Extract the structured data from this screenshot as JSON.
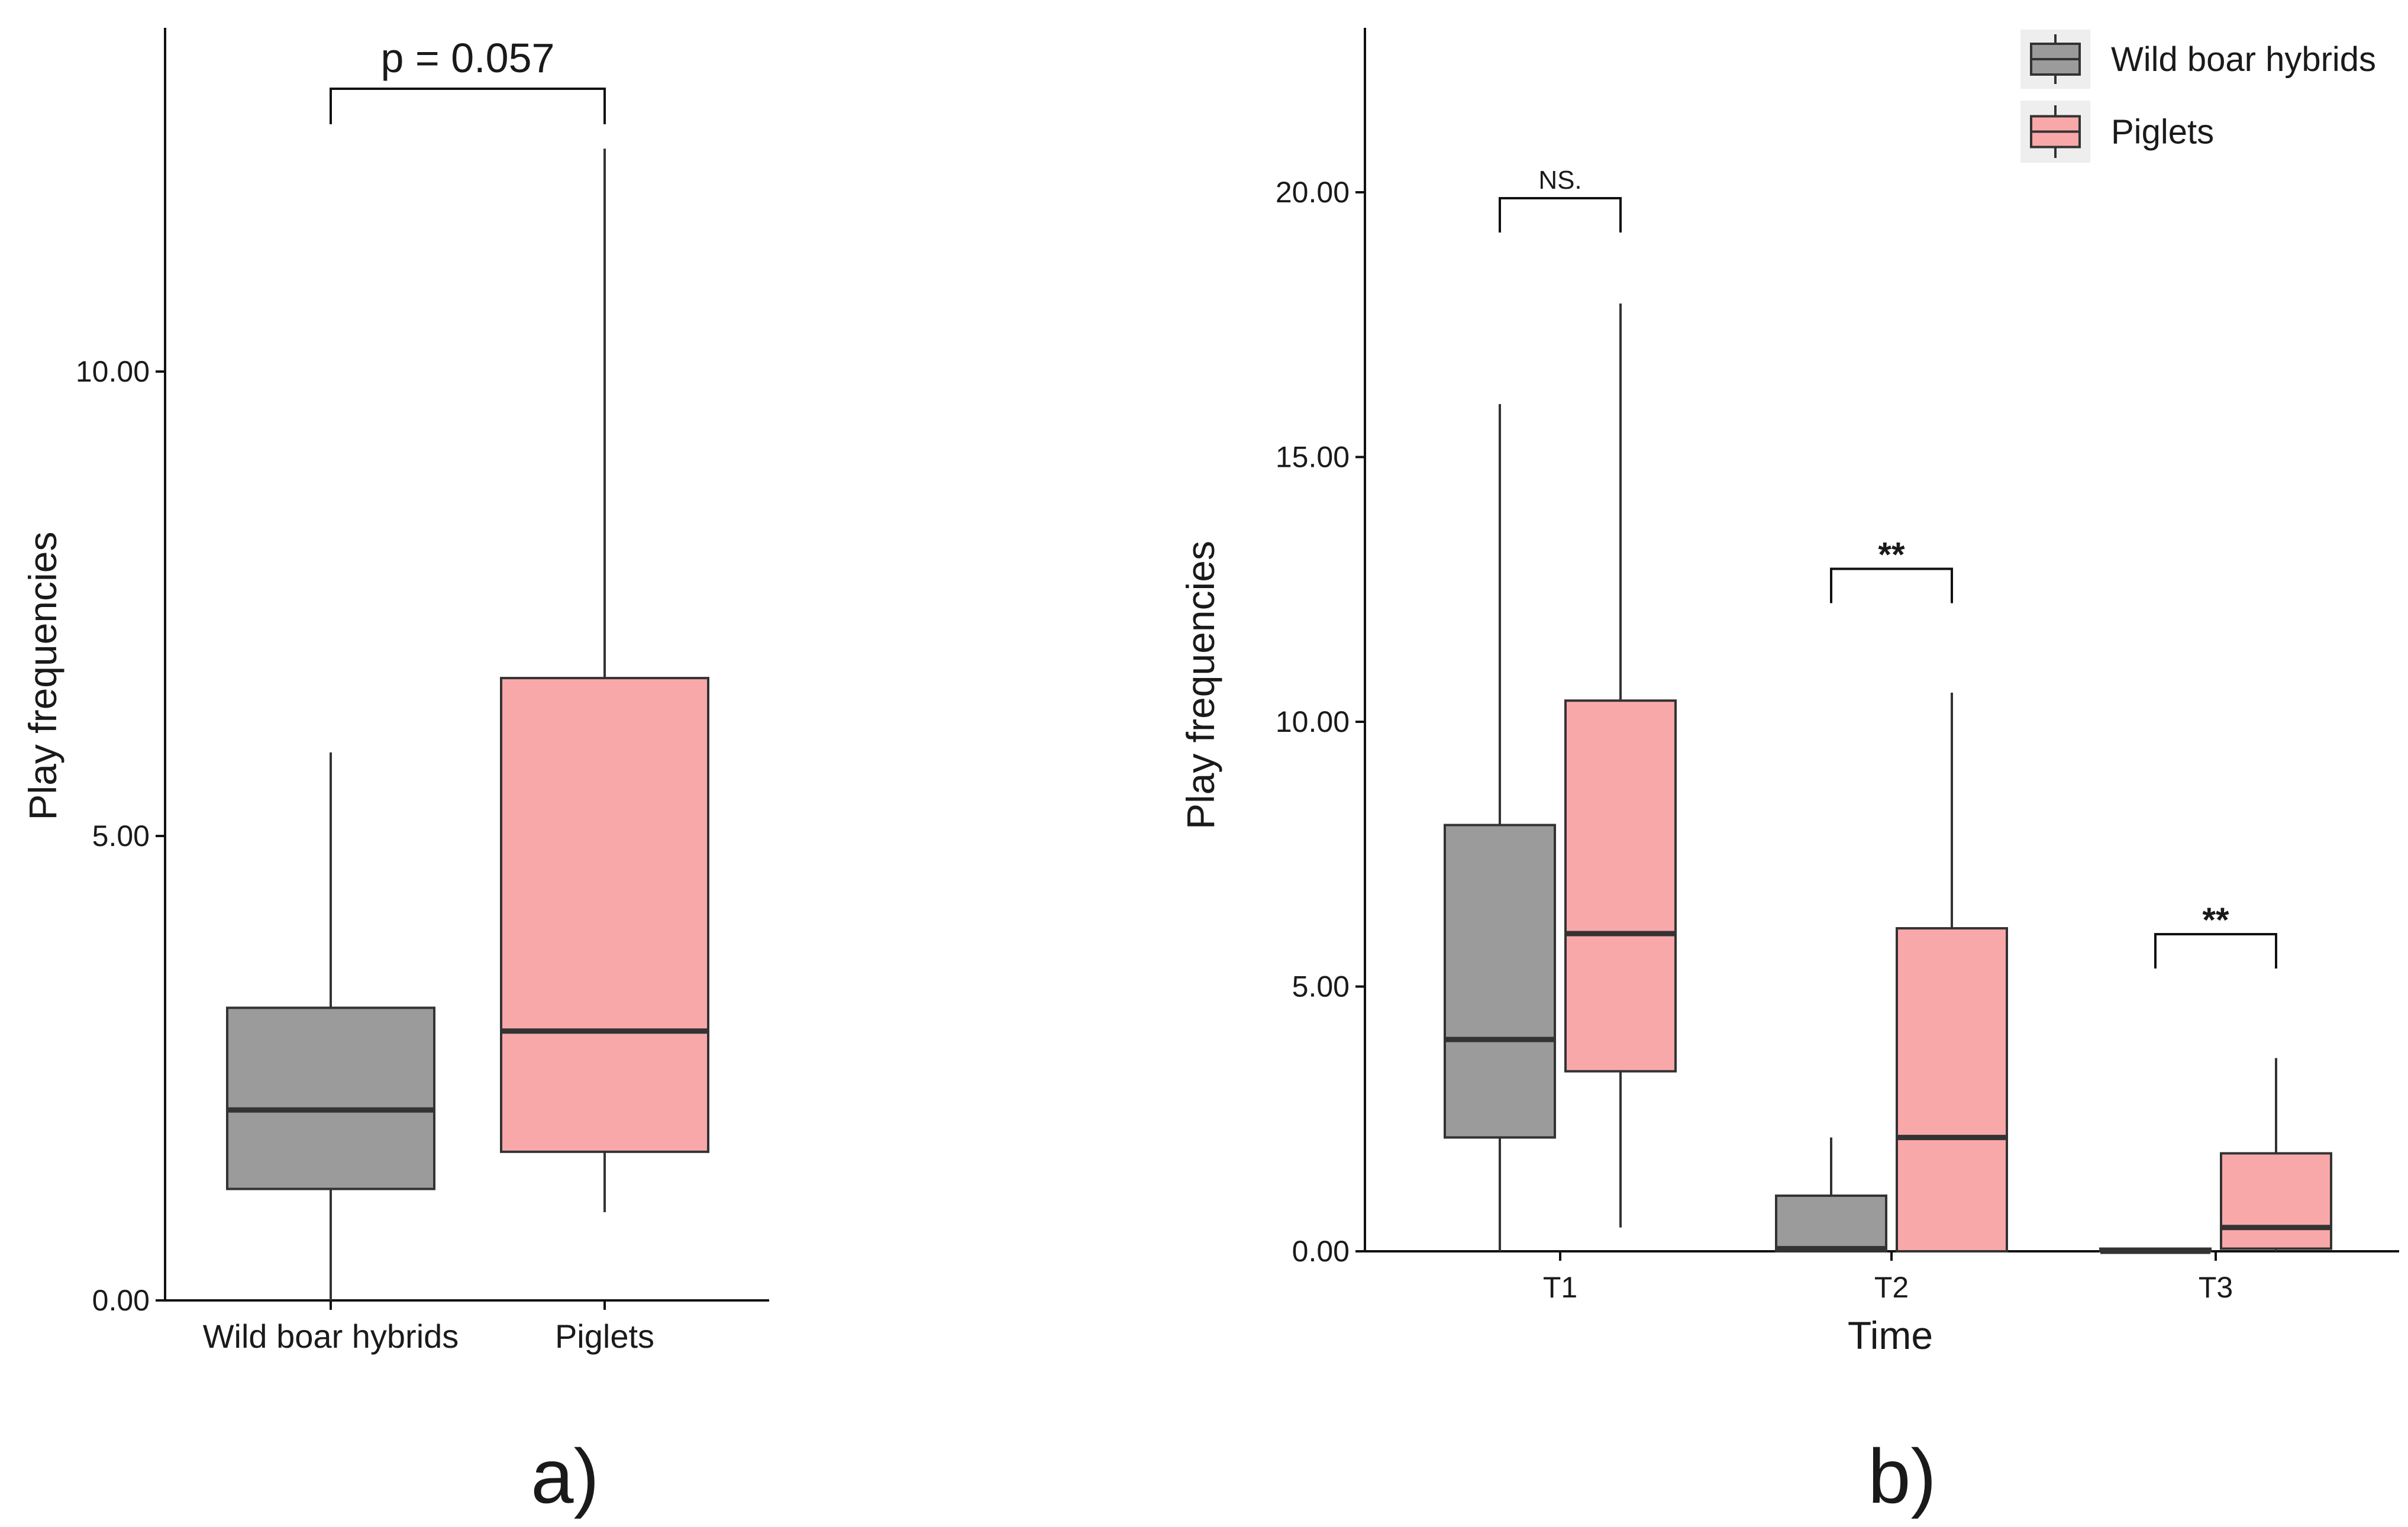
{
  "colors": {
    "wild_boar_hybrids": "#9b9b9b",
    "piglets": "#f9a8aa",
    "line": "#333333"
  },
  "chart_data": [
    {
      "id": "a",
      "type": "box",
      "panel_label": "a)",
      "title": "",
      "xlabel": "",
      "ylabel": "Play frequencies",
      "ylim": [
        0,
        13.6
      ],
      "yticks": [
        0,
        5,
        10
      ],
      "ytick_labels": [
        "0.00",
        "5.00",
        "10.00"
      ],
      "categories": [
        "Wild boar hybrids",
        "Piglets"
      ],
      "boxes": [
        {
          "name": "Wild boar hybrids",
          "min": 0.0,
          "q1": 1.2,
          "median": 2.05,
          "q3": 3.15,
          "max": 5.9,
          "color": "#9b9b9b"
        },
        {
          "name": "Piglets",
          "min": 0.95,
          "q1": 1.6,
          "median": 2.9,
          "q3": 6.7,
          "max": 12.4,
          "color": "#f9a8aa"
        }
      ],
      "annotations": [
        {
          "groups": [
            "Wild boar hybrids",
            "Piglets"
          ],
          "label": "p = 0.057",
          "y": 13.0
        }
      ],
      "grid": false,
      "legend": "none"
    },
    {
      "id": "b",
      "type": "box",
      "panel_label": "b)",
      "title": "",
      "xlabel": "Time",
      "ylabel": "Play frequencies",
      "ylim": [
        0,
        23.1
      ],
      "yticks": [
        0,
        5,
        10,
        15,
        20
      ],
      "ytick_labels": [
        "0.00",
        "5.00",
        "10.00",
        "15.00",
        "20.00"
      ],
      "categories": [
        "T1",
        "T2",
        "T3"
      ],
      "series": [
        {
          "name": "Wild boar hybrids",
          "color": "#9b9b9b",
          "boxes": [
            {
              "min": 0.0,
              "q1": 2.15,
              "median": 4.0,
              "q3": 8.05,
              "max": 16.0
            },
            {
              "min": 0.0,
              "q1": 0.0,
              "median": 0.05,
              "q3": 1.05,
              "max": 2.15
            },
            {
              "min": 0.0,
              "q1": 0.0,
              "median": 0.0,
              "q3": 0.05,
              "max": 0.05
            }
          ]
        },
        {
          "name": "Piglets",
          "color": "#f9a8aa",
          "boxes": [
            {
              "min": 0.45,
              "q1": 3.4,
              "median": 6.0,
              "q3": 10.4,
              "max": 17.9
            },
            {
              "min": 0.0,
              "q1": 0.0,
              "median": 2.15,
              "q3": 6.1,
              "max": 10.55
            },
            {
              "min": 0.0,
              "q1": 0.05,
              "median": 0.45,
              "q3": 1.85,
              "max": 3.65
            }
          ]
        }
      ],
      "annotations": [
        {
          "category": "T1",
          "label": "NS.",
          "y": 20.0
        },
        {
          "category": "T2",
          "label": "**",
          "y": 13.0
        },
        {
          "category": "T3",
          "label": "**",
          "y": 6.1
        }
      ],
      "grid": false,
      "legend": "top-right"
    }
  ]
}
